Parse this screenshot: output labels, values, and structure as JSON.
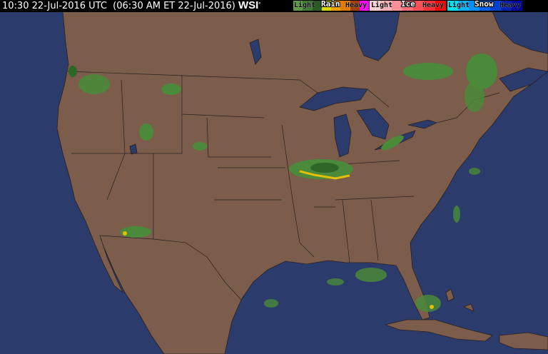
{
  "header": {
    "timestamp": "10:30 22-Jul-2016 UTC  (06:30 AM ET 22-Jul-2016)",
    "logo": "WSI",
    "logo_mark": "°"
  },
  "legend": [
    {
      "title": "Rain",
      "light": "Light",
      "heavy": "Heavy",
      "colors": [
        "#5a9a4a",
        "#3e7a32",
        "#2a5a22",
        "#d8d800",
        "#f0a000",
        "#e07a00",
        "#a04000",
        "#ff00ff"
      ]
    },
    {
      "title": "Ice",
      "light": "Light",
      "heavy": "Heavy",
      "colors": [
        "#ffd0d8",
        "#ffb0b8",
        "#ff9098",
        "#ff7078",
        "#ff5058",
        "#ff3038",
        "#ff0000"
      ]
    },
    {
      "title": "Snow",
      "light": "Light",
      "heavy": "Heavy",
      "colors": [
        "#00e0f0",
        "#00b0ff",
        "#0090ff",
        "#0060f0",
        "#0040d0",
        "#0020b0",
        "#0000a0"
      ]
    }
  ],
  "colors": {
    "ocean": "#2b3b6b",
    "land": "#7c5d4b",
    "border": "#2a2020",
    "radar_light": "#4a8a3a",
    "radar_mid": "#2e6628",
    "radar_heavy": "#e0c000"
  }
}
